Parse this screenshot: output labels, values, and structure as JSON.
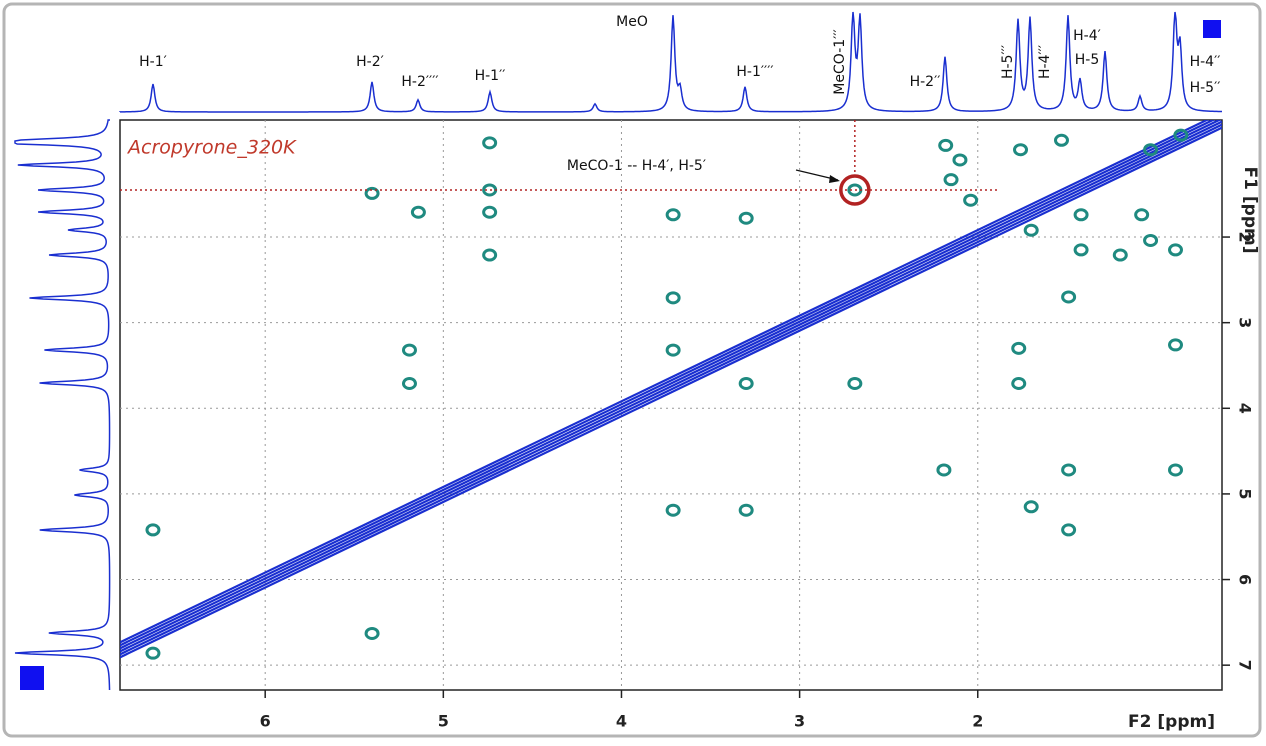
{
  "chart_data": {
    "type": "scatter",
    "title": "Acropyrone_320K",
    "x_label": "F2 [ppm]",
    "y_label": "F1 [ppm]",
    "xlim": [
      6.815,
      0.629
    ],
    "ylim": [
      0.633,
      7.29
    ],
    "xticks": [
      6,
      5,
      4,
      3,
      2
    ],
    "yticks": [
      2,
      3,
      4,
      5,
      6,
      7
    ],
    "grid": true,
    "peak_labels": [
      "H-1′",
      "H-2′",
      "H-2′′′′",
      "H-1′′",
      "MeO",
      "H-1′′′′",
      "MeCO-1′′′",
      "H-2′′",
      "H-5′′′",
      "H-4′′′",
      "H-4′",
      "H-5",
      "H-4′′",
      "H-5′′"
    ],
    "annotation": "MeCO-1 -- H-4′, H-5′",
    "color": "#1f8a80",
    "x": [
      4.74,
      5.4,
      5.14,
      4.74,
      4.74,
      4.74,
      3.71,
      3.3,
      2.69,
      3.71,
      5.19,
      5.19,
      3.71,
      3.3,
      2.69,
      1.77,
      1.77,
      1.49,
      1.49,
      0.89,
      2.19,
      1.7,
      1.49,
      3.71,
      3.3,
      6.63,
      5.4,
      6.63,
      0.89,
      2.18,
      2.1,
      1.76,
      1.53,
      1.03,
      0.86,
      1.42,
      1.2,
      0.89,
      1.03,
      1.7,
      1.08,
      2.15,
      2.04,
      1.42
    ],
    "y": [
      0.9,
      1.49,
      1.71,
      1.45,
      1.71,
      2.21,
      1.74,
      1.78,
      1.45,
      2.71,
      3.32,
      3.71,
      3.32,
      3.71,
      3.71,
      3.3,
      3.71,
      2.7,
      4.72,
      4.72,
      4.72,
      5.15,
      5.42,
      5.19,
      5.19,
      5.42,
      6.63,
      6.86,
      3.26,
      0.93,
      1.1,
      0.98,
      0.87,
      0.98,
      0.81,
      2.15,
      2.21,
      2.15,
      2.04,
      1.92,
      1.74,
      1.33,
      1.57,
      1.74
    ]
  }
}
